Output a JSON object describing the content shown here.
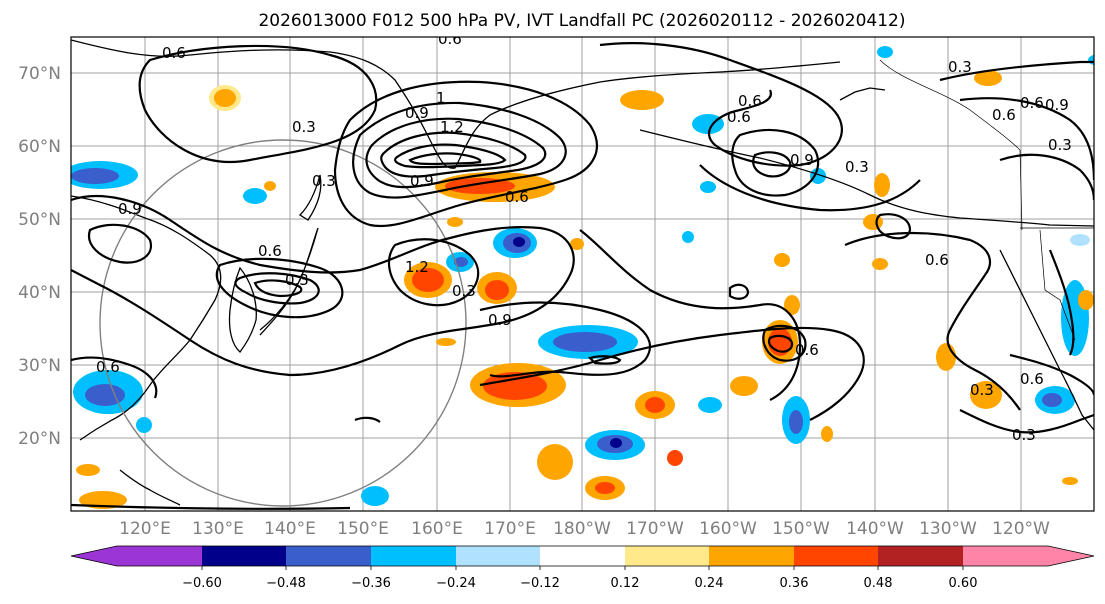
{
  "title": "2026013000 F012 500 hPa PV, IVT Landfall PC (2026020112 - 2026020412)",
  "lat_labels": [
    "70°N",
    "60°N",
    "50°N",
    "40°N",
    "30°N",
    "20°N"
  ],
  "lon_labels": [
    "120°E",
    "130°E",
    "140°E",
    "150°E",
    "160°E",
    "170°E",
    "180°W",
    "170°W",
    "160°W",
    "150°W",
    "140°W",
    "130°W",
    "120°W"
  ],
  "colorbar": {
    "ticks": [
      "−0.60",
      "−0.48",
      "−0.36",
      "−0.24",
      "−0.12",
      "0.12",
      "0.24",
      "0.36",
      "0.48",
      "0.60"
    ],
    "colors": [
      "#9b35d6",
      "#00008b",
      "#3a5fcd",
      "#00bfff",
      "#b0e2ff",
      "#ffffff",
      "#ffe98a",
      "#ffa500",
      "#ff4500",
      "#b22222",
      "#ff85a8"
    ]
  },
  "contour_labels": {
    "c1": "0.6",
    "c2": "0.6",
    "c3": "0.3",
    "c4": "0.3",
    "c5": "0.9",
    "c6": "1",
    "c7": "1.2",
    "c8": "0.9",
    "c9": "0.6",
    "c10": "0.6",
    "c11": "0.3",
    "c12": "0.9",
    "c13": "0.6",
    "c14": "1.2",
    "c15": "0.3",
    "c16": "0.9",
    "c17": "0.6",
    "c18": "0.6",
    "c19": "0.3",
    "c20": "0.9",
    "c21": "0.6",
    "c22": "0.6",
    "c23": "0.3",
    "c24": "0.6",
    "c25": "0.3",
    "c26": "0.6",
    "c27": "0.3",
    "c28": "0.9",
    "c29": "0.3",
    "c30": "0.6"
  }
}
